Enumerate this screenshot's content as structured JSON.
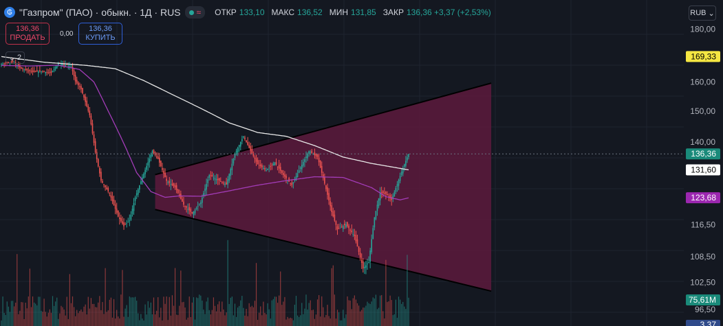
{
  "header": {
    "logo_glyph": "₲",
    "title": "\"Газпром\" (ПАО) · обыкн. · 1Д · RUS",
    "status_wave": "≈",
    "ohlc": [
      {
        "label": "ОТКР",
        "value": "133,10"
      },
      {
        "label": "МАКС",
        "value": "136,52"
      },
      {
        "label": "МИН",
        "value": "131,85"
      },
      {
        "label": "ЗАКР",
        "value": "136,36 +3,37 (+2,53%)"
      }
    ]
  },
  "trade": {
    "sell_price": "136,36",
    "sell_label": "ПРОДАТЬ",
    "spread": "0,00",
    "buy_price": "136,36",
    "buy_label": "КУПИТЬ"
  },
  "indicators_toggle": {
    "count": "2"
  },
  "currency": {
    "label": "RUB"
  },
  "colors": {
    "up": "#26a69a",
    "down": "#ef5350",
    "ma_long": "#e8e8e8",
    "ma_short": "#a33cb8",
    "triangle_fill": "#5c1a3c",
    "price_badge": "#1a8a7a",
    "ma_badge": "#9c27b0",
    "high_badge": "#f5e642"
  },
  "chart_data": {
    "type": "candlestick",
    "y_scale": "log",
    "ylim": [
      93,
      192
    ],
    "y_ticks": [
      "180,00",
      "160,00",
      "150,00",
      "140,00",
      "116,50",
      "108,50",
      "102,50",
      "96,50"
    ],
    "y_tick_values": [
      180,
      160,
      150,
      140,
      116.5,
      108.5,
      102.5,
      96.5
    ],
    "badges": [
      {
        "name": "high-badge",
        "value": 169.33,
        "label": "169,33"
      },
      {
        "name": "last-price-badge",
        "value": 136.36,
        "label": "136,36"
      },
      {
        "name": "ma-long-badge",
        "value": 131.6,
        "label": "131,60"
      },
      {
        "name": "ma-short-badge",
        "value": 123.68,
        "label": "123,68"
      }
    ],
    "volume_label": "75,61M",
    "bottom_badge_label": "3,37",
    "last_price_line": 136.36,
    "candle_count": 140,
    "price_anchors": [
      [
        0,
        166.5
      ],
      [
        8,
        167.2
      ],
      [
        14,
        164.8
      ],
      [
        22,
        163.6
      ],
      [
        28,
        163.9
      ],
      [
        35,
        163.2
      ],
      [
        40,
        166.8
      ],
      [
        45,
        166.2
      ],
      [
        49,
        165.8
      ],
      [
        52,
        160.2
      ],
      [
        56,
        157.5
      ],
      [
        62,
        148.6
      ],
      [
        66,
        136.8
      ],
      [
        70,
        128.5
      ],
      [
        76,
        124.8
      ],
      [
        82,
        118.6
      ],
      [
        86,
        116.1
      ],
      [
        90,
        117.6
      ],
      [
        94,
        123.8
      ],
      [
        100,
        130.5
      ],
      [
        106,
        137.2
      ],
      [
        110,
        134.8
      ],
      [
        116,
        128.4
      ],
      [
        122,
        126.6
      ],
      [
        128,
        121.8
      ],
      [
        134,
        119.5
      ],
      [
        140,
        122.4
      ],
      [
        146,
        130.1
      ],
      [
        152,
        128.7
      ],
      [
        158,
        127.4
      ],
      [
        164,
        136.4
      ],
      [
        170,
        141.8
      ],
      [
        174,
        138.2
      ],
      [
        180,
        133.2
      ],
      [
        186,
        131.5
      ],
      [
        192,
        133.8
      ],
      [
        198,
        130.1
      ],
      [
        204,
        127.2
      ],
      [
        210,
        132.3
      ],
      [
        216,
        137.2
      ],
      [
        222,
        135.4
      ],
      [
        226,
        129.2
      ],
      [
        232,
        119.8
      ],
      [
        236,
        115.3
      ],
      [
        242,
        116.6
      ],
      [
        248,
        113.6
      ],
      [
        254,
        105.7
      ],
      [
        258,
        107.2
      ],
      [
        262,
        118.4
      ],
      [
        266,
        125.2
      ],
      [
        270,
        124.8
      ],
      [
        274,
        123.1
      ],
      [
        278,
        127.5
      ],
      [
        282,
        132.2
      ],
      [
        286,
        136.36
      ]
    ],
    "ma_long_anchors": [
      [
        0,
        169.3
      ],
      [
        30,
        167.2
      ],
      [
        60,
        166.0
      ],
      [
        80,
        164.8
      ],
      [
        100,
        160.5
      ],
      [
        120,
        155.6
      ],
      [
        140,
        150.9
      ],
      [
        160,
        146.1
      ],
      [
        180,
        143.0
      ],
      [
        200,
        141.8
      ],
      [
        220,
        138.9
      ],
      [
        240,
        135.4
      ],
      [
        260,
        133.5
      ],
      [
        286,
        131.6
      ]
    ],
    "ma_short_anchors": [
      [
        0,
        166.0
      ],
      [
        20,
        165.8
      ],
      [
        40,
        166.1
      ],
      [
        55,
        164.5
      ],
      [
        65,
        160.0
      ],
      [
        75,
        150.0
      ],
      [
        85,
        140.5
      ],
      [
        95,
        130.8
      ],
      [
        105,
        125.4
      ],
      [
        115,
        123.8
      ],
      [
        125,
        124.2
      ],
      [
        140,
        124.1
      ],
      [
        160,
        125.6
      ],
      [
        180,
        127.2
      ],
      [
        200,
        128.5
      ],
      [
        220,
        129.6
      ],
      [
        240,
        129.4
      ],
      [
        260,
        126.5
      ],
      [
        270,
        124.0
      ],
      [
        280,
        123.1
      ],
      [
        286,
        123.68
      ]
    ],
    "triangle": {
      "upper": [
        [
          108,
          130.2
        ],
        [
          344,
          159.6
        ]
      ],
      "lower": [
        [
          108,
          120.5
        ],
        [
          344,
          100.5
        ]
      ]
    }
  }
}
